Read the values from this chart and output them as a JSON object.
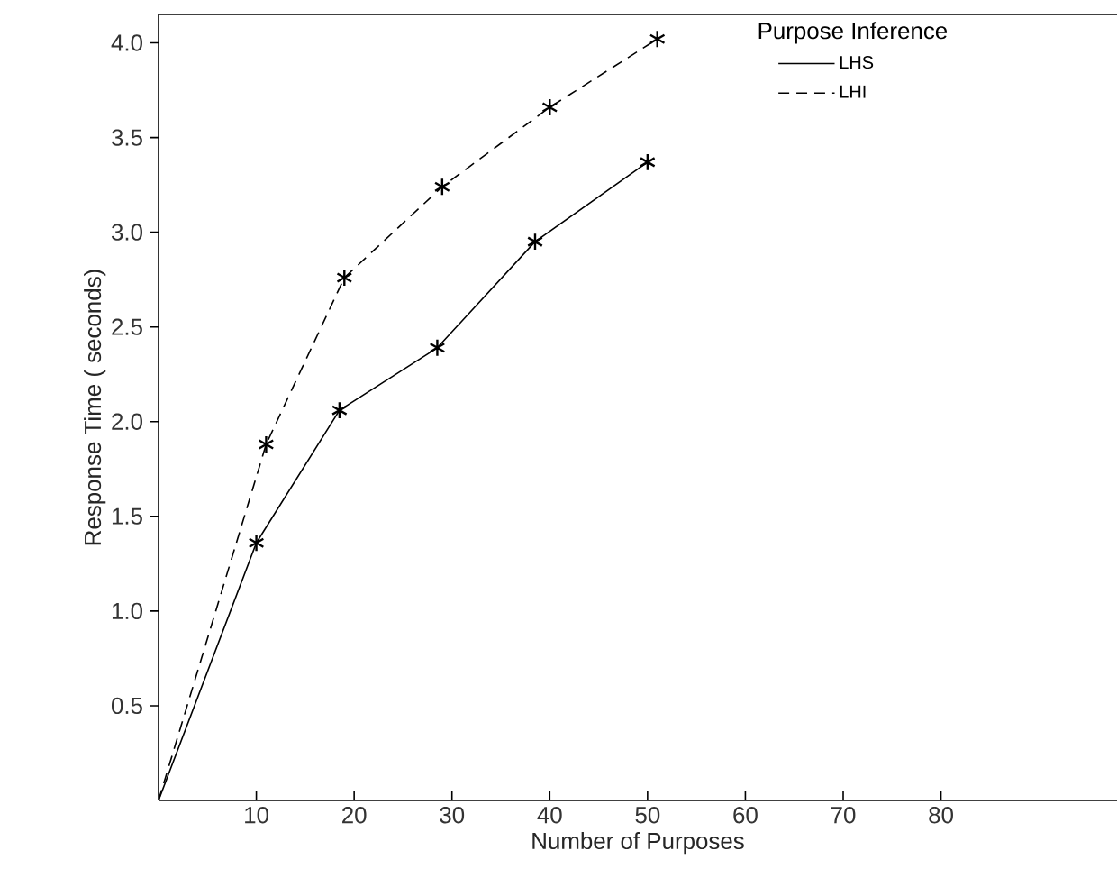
{
  "chart_data": {
    "type": "line",
    "legend_title": "Purpose Inference",
    "xlabel": "Number of Purposes",
    "ylabel": "Response Time  ( seconds)",
    "xlim": [
      0,
      98
    ],
    "ylim": [
      0,
      4.15
    ],
    "xticks": [
      10,
      20,
      30,
      40,
      50,
      60,
      70,
      80
    ],
    "yticks": [
      {
        "value": 0.5,
        "label": "0.5"
      },
      {
        "value": 1,
        "label": "1.0"
      },
      {
        "value": 1.5,
        "label": "1.5"
      },
      {
        "value": 2,
        "label": "2.0"
      },
      {
        "value": 2.5,
        "label": "2.5"
      },
      {
        "value": 3,
        "label": "3.0"
      },
      {
        "value": 3.5,
        "label": "3.5"
      },
      {
        "value": 4,
        "label": "4.0"
      }
    ],
    "grid": false,
    "legend": "top right",
    "marker": "cross",
    "series": [
      {
        "name": "LHS",
        "color": "#000000",
        "line_style": "solid",
        "x": [
          0,
          10,
          18.5,
          28.5,
          38.5,
          50
        ],
        "values": [
          0,
          1.36,
          2.06,
          2.39,
          2.95,
          3.37
        ]
      },
      {
        "name": "LHI",
        "color": "#000000",
        "line_style": "dashed",
        "x": [
          0,
          11,
          19,
          29,
          40,
          51
        ],
        "values": [
          0,
          1.88,
          2.76,
          3.24,
          3.66,
          4.02
        ]
      }
    ]
  }
}
